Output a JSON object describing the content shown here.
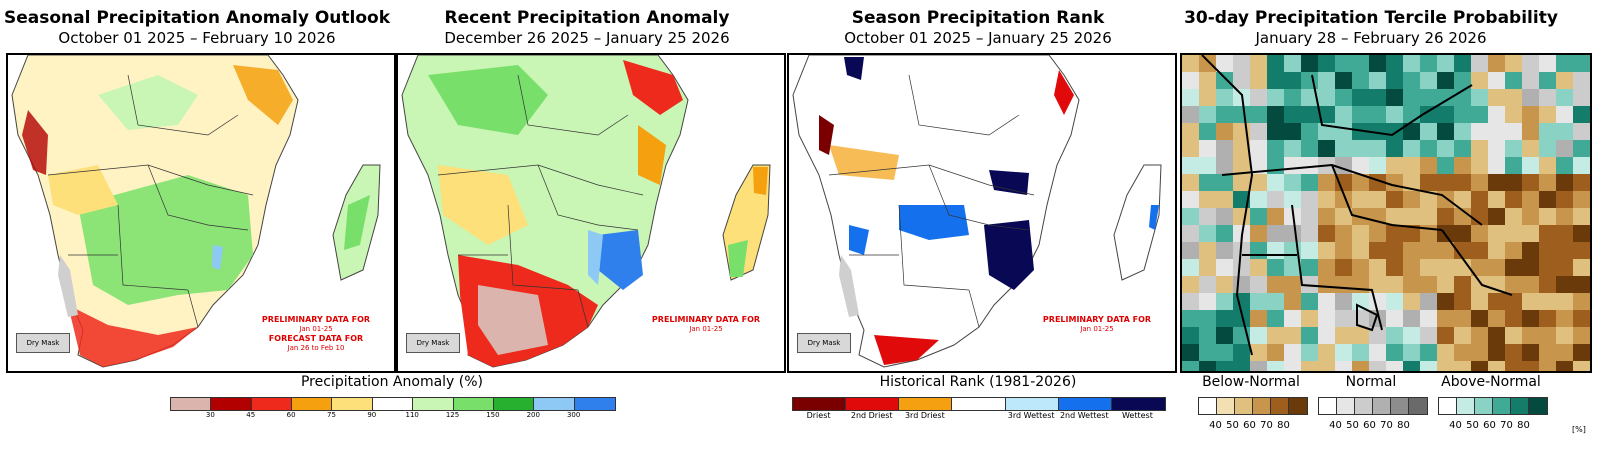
{
  "panels": [
    {
      "title": "Seasonal Precipitation Anomaly Outlook",
      "subtitle": "October 01 2025 – February 10 2026"
    },
    {
      "title": "Recent Precipitation Anomaly",
      "subtitle": "December 26 2025 – January 25 2026"
    },
    {
      "title": "Season Precipitation Rank",
      "subtitle": "October 01 2025 – January 25 2026"
    },
    {
      "title": "30-day Precipitation Tercile Probability",
      "subtitle": "January 28 – February 26 2026"
    }
  ],
  "dry_mask_label": "Dry Mask",
  "notices": {
    "prelim": "PRELIMINARY DATA FOR",
    "prelim_dates": "Jan 01-25",
    "forecast": "FORECAST DATA FOR",
    "forecast_dates": "Jan 26 to Feb 10"
  },
  "legend_anomaly": {
    "title": "Precipitation Anomaly (%)",
    "colors": [
      "#dbb5ad",
      "#b20000",
      "#ee2a1c",
      "#f5a00e",
      "#fde07a",
      "#ffffff",
      "#c9f5b5",
      "#78e06a",
      "#27b030",
      "#8ec9f5",
      "#2f7fec"
    ],
    "ticks": [
      "30",
      "45",
      "60",
      "75",
      "90",
      "110",
      "125",
      "150",
      "200",
      "300"
    ]
  },
  "legend_rank": {
    "title": "Historical Rank (1981-2026)",
    "colors": [
      "#7a0000",
      "#e00a0a",
      "#f5a010",
      "#ffffff",
      "#bde8fb",
      "#1570ee",
      "#080855"
    ],
    "labels": [
      "Driest",
      "2nd Driest",
      "3rd Driest",
      "",
      "3rd Wettest",
      "2nd Wettest",
      "Wettest"
    ]
  },
  "legend_tercile": {
    "groups": [
      {
        "label": "Below-Normal",
        "colors": [
          "#ffffff",
          "#f3e0b2",
          "#dfc07f",
          "#c8954c",
          "#9e5f1e",
          "#6b3a0a"
        ]
      },
      {
        "label": "Normal",
        "colors": [
          "#ffffff",
          "#e6e6e6",
          "#cccccc",
          "#b0b0b0",
          "#8d8d8d",
          "#6a6a6a"
        ]
      },
      {
        "label": "Above-Normal",
        "colors": [
          "#ffffff",
          "#c5ece4",
          "#8ad3c4",
          "#40aa96",
          "#137c6b",
          "#044a3f"
        ]
      }
    ],
    "ticks": [
      "40",
      "50",
      "60",
      "70",
      "80"
    ],
    "unit": "[%]"
  },
  "map_colors": {
    "ocean": "#ffffff",
    "land": "#ffffff",
    "border": "#333333",
    "mask": "#cfcfcf"
  }
}
